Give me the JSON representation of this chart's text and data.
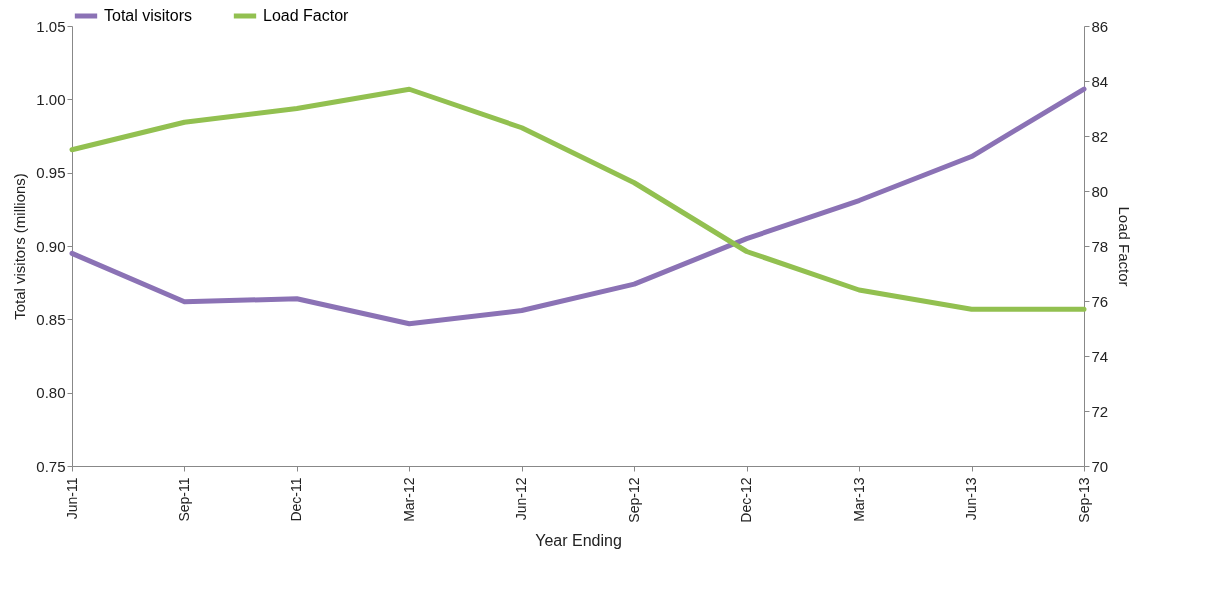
{
  "chart_data": {
    "type": "line",
    "categories": [
      "Jun-11",
      "Sep-11",
      "Dec-11",
      "Mar-12",
      "Jun-12",
      "Sep-12",
      "Dec-12",
      "Mar-13",
      "Jun-13",
      "Sep-13"
    ],
    "xlabel": "Year Ending",
    "ylabel": "Total visitors (millions)",
    "y2label": "Load Factor",
    "series": [
      {
        "name": "Total visitors",
        "color": "#8b72b5",
        "values": [
          0.895,
          0.862,
          0.864,
          0.847,
          0.856,
          0.874,
          0.905,
          0.931,
          0.961,
          1.007
        ]
      },
      {
        "name": "Load Factor",
        "color": "#92c050",
        "axis": "y2",
        "values": [
          81.5,
          82.5,
          83.0,
          83.7,
          82.3,
          80.3,
          77.8,
          76.4,
          75.7,
          75.7
        ]
      }
    ],
    "ylim": [
      0.75,
      1.05
    ],
    "yticks": [
      {
        "value": 0.75,
        "label": "0.75"
      },
      {
        "value": 0.8,
        "label": "0.80"
      },
      {
        "value": 0.85,
        "label": "0.85"
      },
      {
        "value": 0.9,
        "label": "0.90"
      },
      {
        "value": 0.95,
        "label": "0.95"
      },
      {
        "value": 1.0,
        "label": "1.00"
      },
      {
        "value": 1.05,
        "label": "1.05"
      }
    ],
    "y2lim": [
      70,
      86
    ],
    "y2ticks": [
      70,
      72,
      74,
      76,
      78,
      80,
      82,
      84,
      86
    ],
    "grid": false,
    "legend": "top",
    "marker": "none",
    "line_style": "solid"
  }
}
